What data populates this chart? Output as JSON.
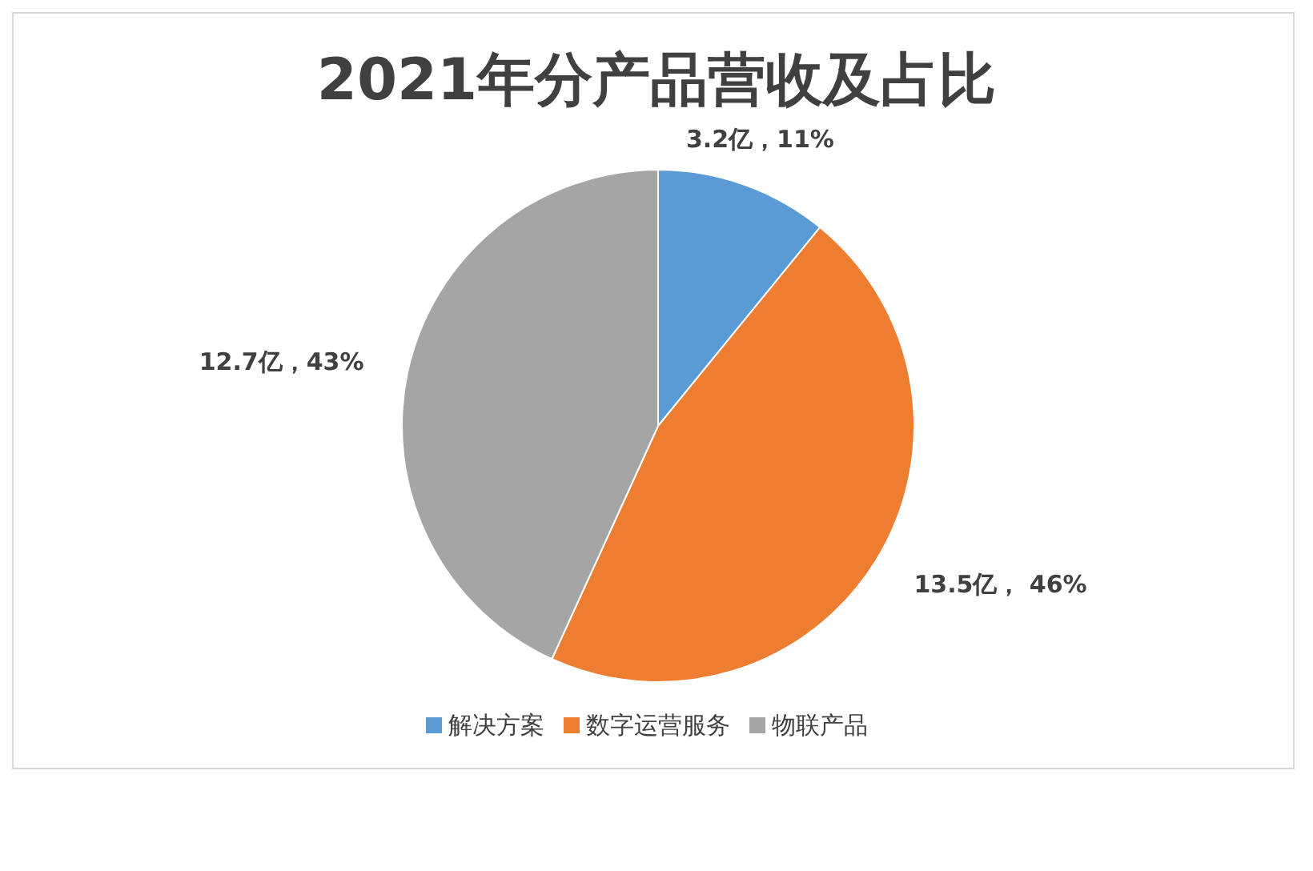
{
  "chart_data": {
    "type": "pie",
    "title": "2021年分产品营收及占比",
    "categories": [
      "解决方案",
      "数字运营服务",
      "物联产品"
    ],
    "values": [
      3.2,
      13.5,
      12.7
    ],
    "colors": [
      "#5b9bd5",
      "#ed7d31",
      "#a5a5a5"
    ],
    "value_labels": [
      "3.2亿，11%",
      "13.5亿， 46%",
      "12.7亿，43%"
    ],
    "legend": "bottom"
  }
}
